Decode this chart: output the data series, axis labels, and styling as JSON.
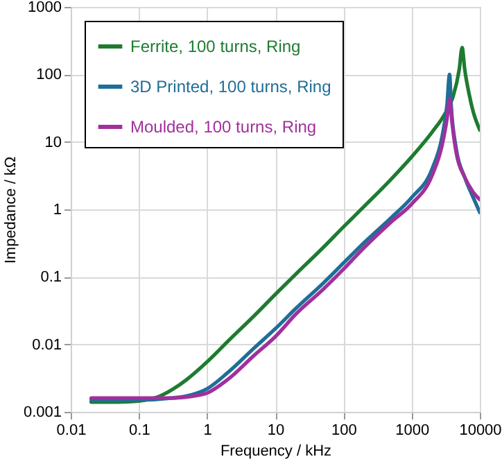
{
  "chart_data": {
    "type": "line",
    "xlabel": "Frequency / kHz",
    "ylabel": "Impedance / kΩ",
    "log": "xy",
    "grid": true,
    "legend": "top left",
    "marker": "none",
    "line_style": "solid",
    "xlim": [
      0.01,
      10000
    ],
    "xticks": [
      0.01,
      0.1,
      1,
      10,
      100,
      1000,
      10000
    ],
    "ylim": [
      0.001,
      1000
    ],
    "yticks": [
      0.001,
      0.01,
      0.1,
      1,
      10,
      100,
      1000
    ],
    "series": [
      {
        "name": "Ferrite, 100 turns, Ring",
        "color": "#1e7b30",
        "x": [
          0.02,
          0.05,
          0.1,
          0.2,
          0.5,
          1,
          2,
          5,
          10,
          20,
          50,
          100,
          200,
          500,
          1000,
          2000,
          3000,
          4000,
          5000,
          5500,
          6000,
          7000,
          8000,
          10000
        ],
        "values": [
          0.0014,
          0.0014,
          0.00145,
          0.0017,
          0.003,
          0.0055,
          0.011,
          0.027,
          0.055,
          0.11,
          0.27,
          0.55,
          1.1,
          2.8,
          6,
          14,
          25,
          45,
          120,
          250,
          120,
          50,
          28,
          15
        ]
      },
      {
        "name": "3D Printed, 100 turns, Ring",
        "color": "#1f6e97",
        "x": [
          0.02,
          0.1,
          0.3,
          0.6,
          1,
          2,
          5,
          10,
          20,
          50,
          100,
          200,
          500,
          1000,
          2000,
          2800,
          3300,
          3600,
          3800,
          4500,
          6000,
          8000,
          10000
        ],
        "values": [
          0.0015,
          0.0015,
          0.0016,
          0.0018,
          0.0022,
          0.0038,
          0.009,
          0.017,
          0.034,
          0.08,
          0.16,
          0.32,
          0.75,
          1.5,
          4,
          12,
          35,
          100,
          35,
          8,
          3,
          1.5,
          0.9
        ]
      },
      {
        "name": "Moulded, 100 turns, Ring",
        "color": "#a0309e",
        "x": [
          0.02,
          0.1,
          0.3,
          0.6,
          1,
          2,
          5,
          10,
          20,
          50,
          100,
          200,
          500,
          1000,
          2000,
          2800,
          3300,
          3600,
          3900,
          4500,
          6000,
          8000,
          10000
        ],
        "values": [
          0.0016,
          0.0016,
          0.0016,
          0.0017,
          0.0019,
          0.003,
          0.007,
          0.013,
          0.028,
          0.065,
          0.13,
          0.27,
          0.65,
          1.2,
          3.2,
          9,
          22,
          44,
          20,
          7,
          3,
          1.8,
          1.4
        ]
      }
    ]
  }
}
